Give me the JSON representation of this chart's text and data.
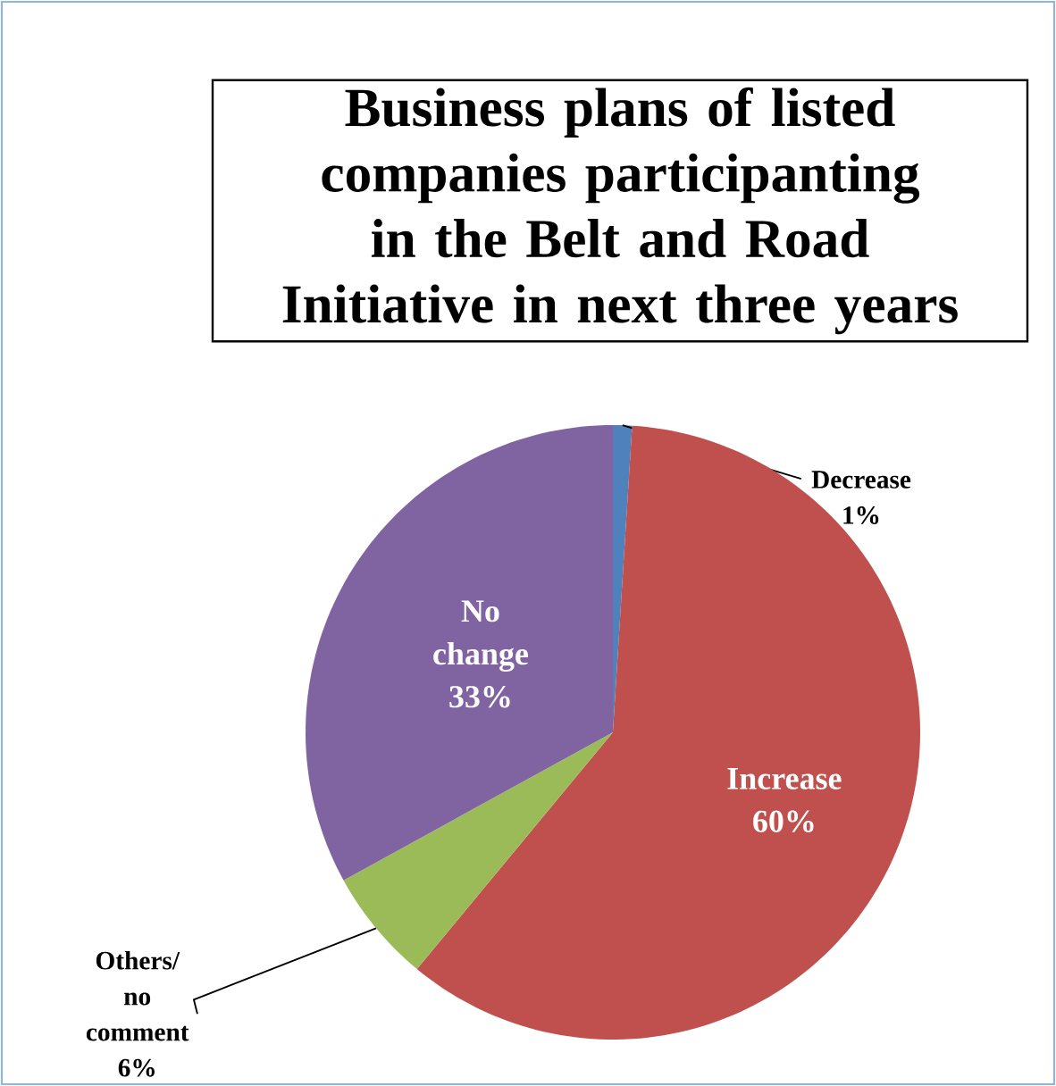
{
  "chart_data": {
    "type": "pie",
    "title": "Business plans of listed companies participanting in the Belt and Road Initiative in next three years",
    "categories": [
      "Decrease",
      "Increase",
      "Others/ no comment",
      "No change"
    ],
    "values": [
      1,
      60,
      6,
      33
    ],
    "colors": [
      "#4f81bd",
      "#c0504d",
      "#9bbb59",
      "#8064a2"
    ],
    "value_labels": [
      "1%",
      "60%",
      "6%",
      "33%"
    ]
  }
}
